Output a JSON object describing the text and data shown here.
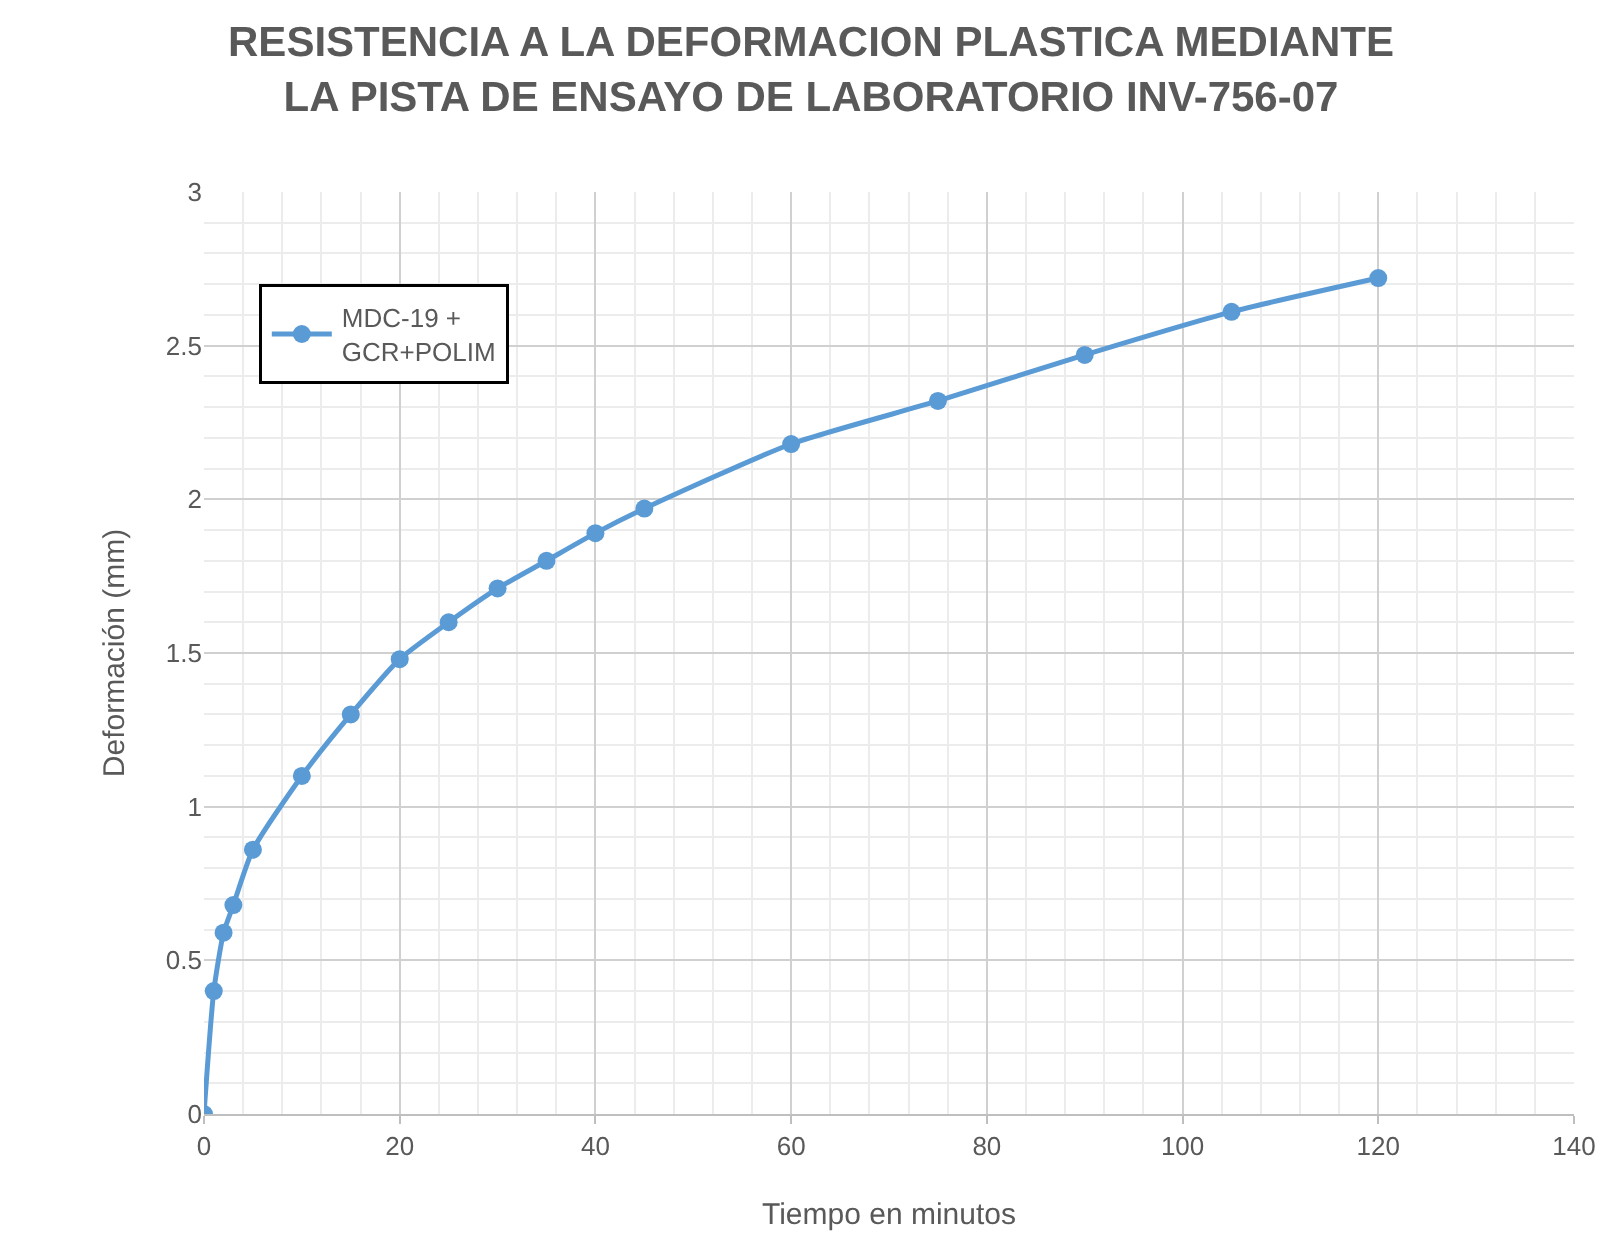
{
  "chart_data": {
    "type": "line",
    "title": "RESISTENCIA A LA DEFORMACION PLASTICA MEDIANTE\nLA PISTA DE ENSAYO DE LABORATORIO INV-756-07",
    "xlabel": "Tiempo en minutos",
    "ylabel": "Deformación (mm)",
    "x": [
      0,
      1,
      2,
      3,
      5,
      10,
      15,
      20,
      25,
      30,
      35,
      40,
      45,
      60,
      75,
      90,
      105,
      120
    ],
    "series": [
      {
        "name": "MDC-19 +\nGCR+POLIM",
        "color": "#5b9bd5",
        "values": [
          0,
          0.4,
          0.59,
          0.68,
          0.86,
          1.1,
          1.3,
          1.48,
          1.6,
          1.71,
          1.8,
          1.89,
          1.97,
          2.18,
          2.32,
          2.47,
          2.61,
          2.72
        ]
      }
    ],
    "xlim": [
      0,
      140
    ],
    "xticks": [
      0,
      20,
      40,
      60,
      80,
      100,
      120,
      140
    ],
    "ylim": [
      0,
      3
    ],
    "yticks": [
      0,
      0.5,
      1,
      1.5,
      2,
      2.5,
      3
    ],
    "grid": true,
    "legend": "top left",
    "marker": "circle",
    "line_style": "solid"
  }
}
